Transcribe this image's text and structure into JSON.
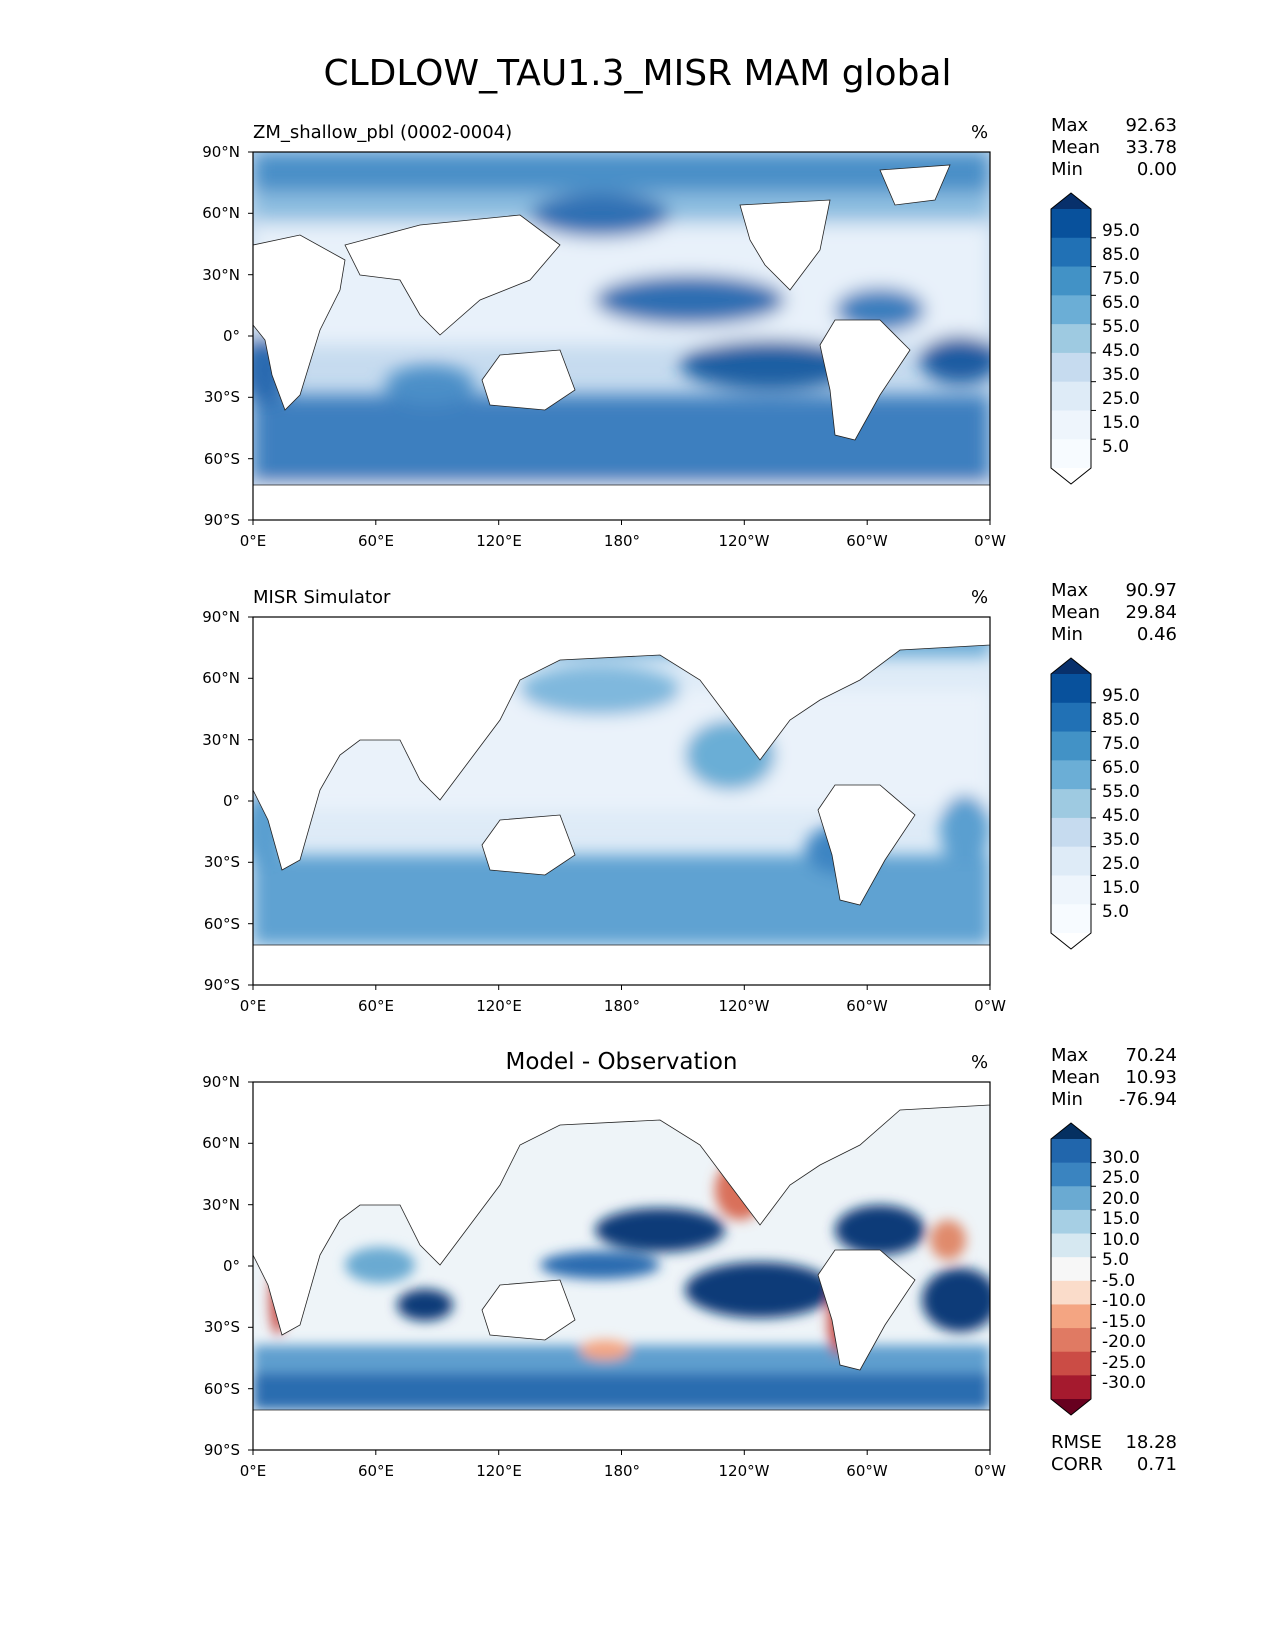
{
  "title": "CLDLOW_TAU1.3_MISR MAM global",
  "lat_ticks": [
    "90°N",
    "60°N",
    "30°N",
    "0°",
    "30°S",
    "60°S",
    "90°S"
  ],
  "lon_ticks": [
    "0°E",
    "60°E",
    "120°E",
    "180°",
    "120°W",
    "60°W",
    "0°W"
  ],
  "panels": [
    {
      "subtitle": "ZM_shallow_pbl (0002-0004)",
      "units": "%",
      "stats": {
        "max_label": "Max",
        "max": "92.63",
        "mean_label": "Mean",
        "mean": "33.78",
        "min_label": "Min",
        "min": "0.00"
      },
      "colorbar": {
        "labels": [
          "95.0",
          "85.0",
          "75.0",
          "65.0",
          "55.0",
          "45.0",
          "35.0",
          "25.0",
          "15.0",
          "5.0"
        ],
        "colors": [
          "#08306b",
          "#08519c",
          "#2171b5",
          "#4292c6",
          "#6baed6",
          "#9ecae1",
          "#c6dbef",
          "#deebf7",
          "#eef5fc",
          "#f7fbff",
          "#ffffff"
        ]
      }
    },
    {
      "subtitle": "MISR Simulator",
      "units": "%",
      "stats": {
        "max_label": "Max",
        "max": "90.97",
        "mean_label": "Mean",
        "mean": "29.84",
        "min_label": "Min",
        "min": "0.46"
      },
      "colorbar": {
        "labels": [
          "95.0",
          "85.0",
          "75.0",
          "65.0",
          "55.0",
          "45.0",
          "35.0",
          "25.0",
          "15.0",
          "5.0"
        ],
        "colors": [
          "#08306b",
          "#08519c",
          "#2171b5",
          "#4292c6",
          "#6baed6",
          "#9ecae1",
          "#c6dbef",
          "#deebf7",
          "#eef5fc",
          "#f7fbff",
          "#ffffff"
        ]
      }
    },
    {
      "subtitle": "Model - Observation",
      "units": "%",
      "stats": {
        "max_label": "Max",
        "max": "70.24",
        "mean_label": "Mean",
        "mean": "10.93",
        "min_label": "Min",
        "min": "-76.94"
      },
      "colorbar": {
        "labels": [
          "30.0",
          "25.0",
          "20.0",
          "15.0",
          "10.0",
          "5.0",
          "-5.0",
          "-10.0",
          "-15.0",
          "-20.0",
          "-25.0",
          "-30.0"
        ],
        "colors": [
          "#053061",
          "#2166ac",
          "#3a84c0",
          "#6aaad2",
          "#a6cfe4",
          "#d6e8f1",
          "#f7f7f7",
          "#fadcca",
          "#f4a582",
          "#e07a63",
          "#cb4c45",
          "#a51a2e",
          "#67001f"
        ]
      },
      "rmse_label": "RMSE",
      "rmse": "18.28",
      "corr_label": "CORR",
      "corr": "0.71"
    }
  ]
}
